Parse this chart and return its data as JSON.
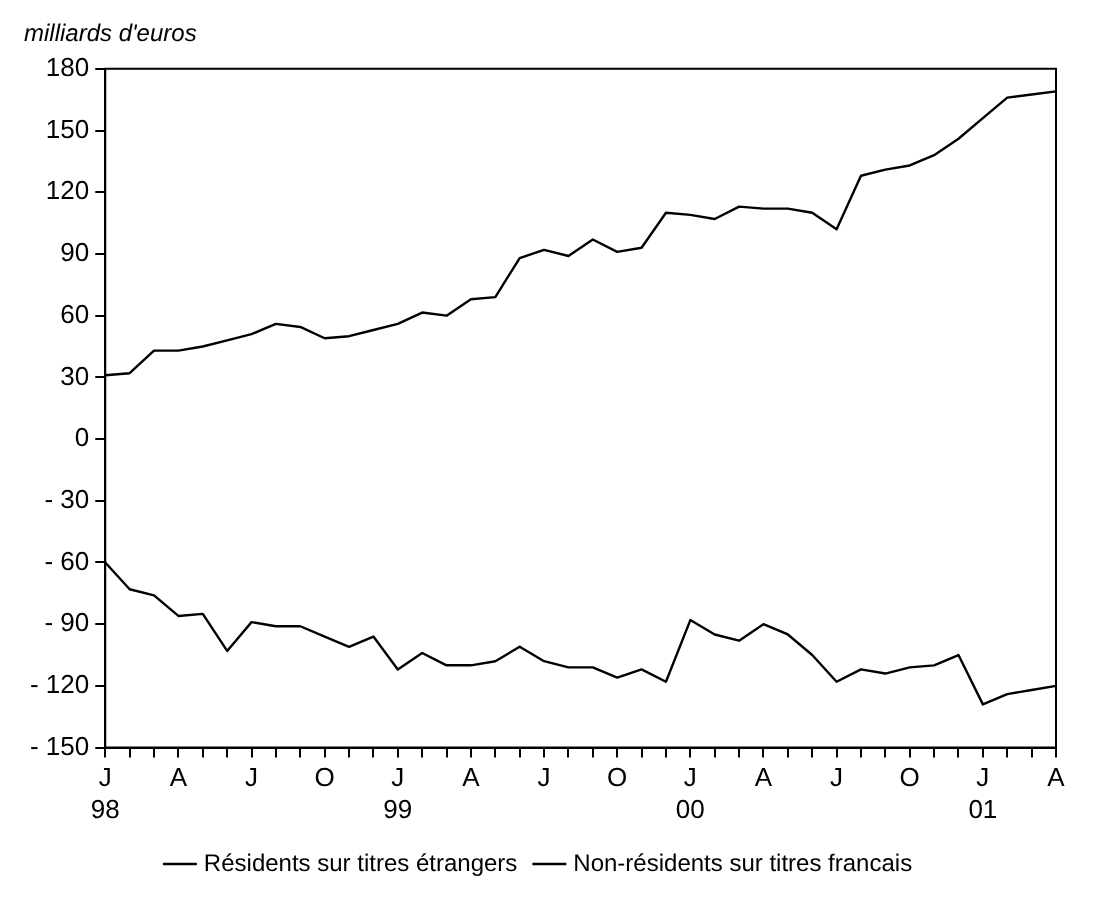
{
  "chart_data": {
    "type": "line",
    "ylabel": "milliards d'euros",
    "categories": [
      "J\n98",
      null,
      null,
      "A",
      null,
      null,
      "J",
      null,
      null,
      "O",
      null,
      null,
      "J\n99",
      null,
      null,
      "A",
      null,
      null,
      "J",
      null,
      null,
      "O",
      null,
      null,
      "J\n00",
      null,
      null,
      "A",
      null,
      null,
      "J",
      null,
      null,
      "O",
      null,
      null,
      "J\n01",
      null,
      null,
      "A"
    ],
    "series": [
      {
        "name": "Résidents sur titres étrangers",
        "color": "#000000",
        "values": [
          31,
          32,
          43,
          43,
          45,
          48,
          51,
          56,
          54.5,
          49,
          50,
          53,
          56,
          61.5,
          60,
          68,
          69,
          88,
          92,
          89,
          97,
          91,
          93,
          110,
          109,
          107,
          113,
          112,
          112,
          110,
          102,
          128,
          131,
          133,
          138,
          146,
          156,
          166,
          167.5,
          169
        ]
      },
      {
        "name": "Non-résidents sur titres francais",
        "color": "#000000",
        "values": [
          -60,
          -73,
          -76,
          -86,
          -85,
          -103,
          -89,
          -91,
          -91,
          -96,
          -101,
          -96,
          -112,
          -104,
          -110,
          -110,
          -108,
          -101,
          -108,
          -111,
          -111,
          -116,
          -112,
          -118,
          -88,
          -95,
          -98,
          -90,
          -95,
          -105,
          -118,
          -112,
          -114,
          -111,
          -110,
          -105,
          -129,
          -124,
          -122,
          -120
        ]
      }
    ],
    "ylim": [
      -150,
      180
    ],
    "yticks": [
      {
        "value": -150,
        "label": "- 150"
      },
      {
        "value": -120,
        "label": "- 120"
      },
      {
        "value": -90,
        "label": "- 90"
      },
      {
        "value": -60,
        "label": "- 60"
      },
      {
        "value": -30,
        "label": "- 30"
      },
      0,
      30,
      60,
      90,
      120,
      150,
      180
    ],
    "grid": false,
    "legend": "bottom",
    "marker": "none",
    "line_style": "solid"
  }
}
